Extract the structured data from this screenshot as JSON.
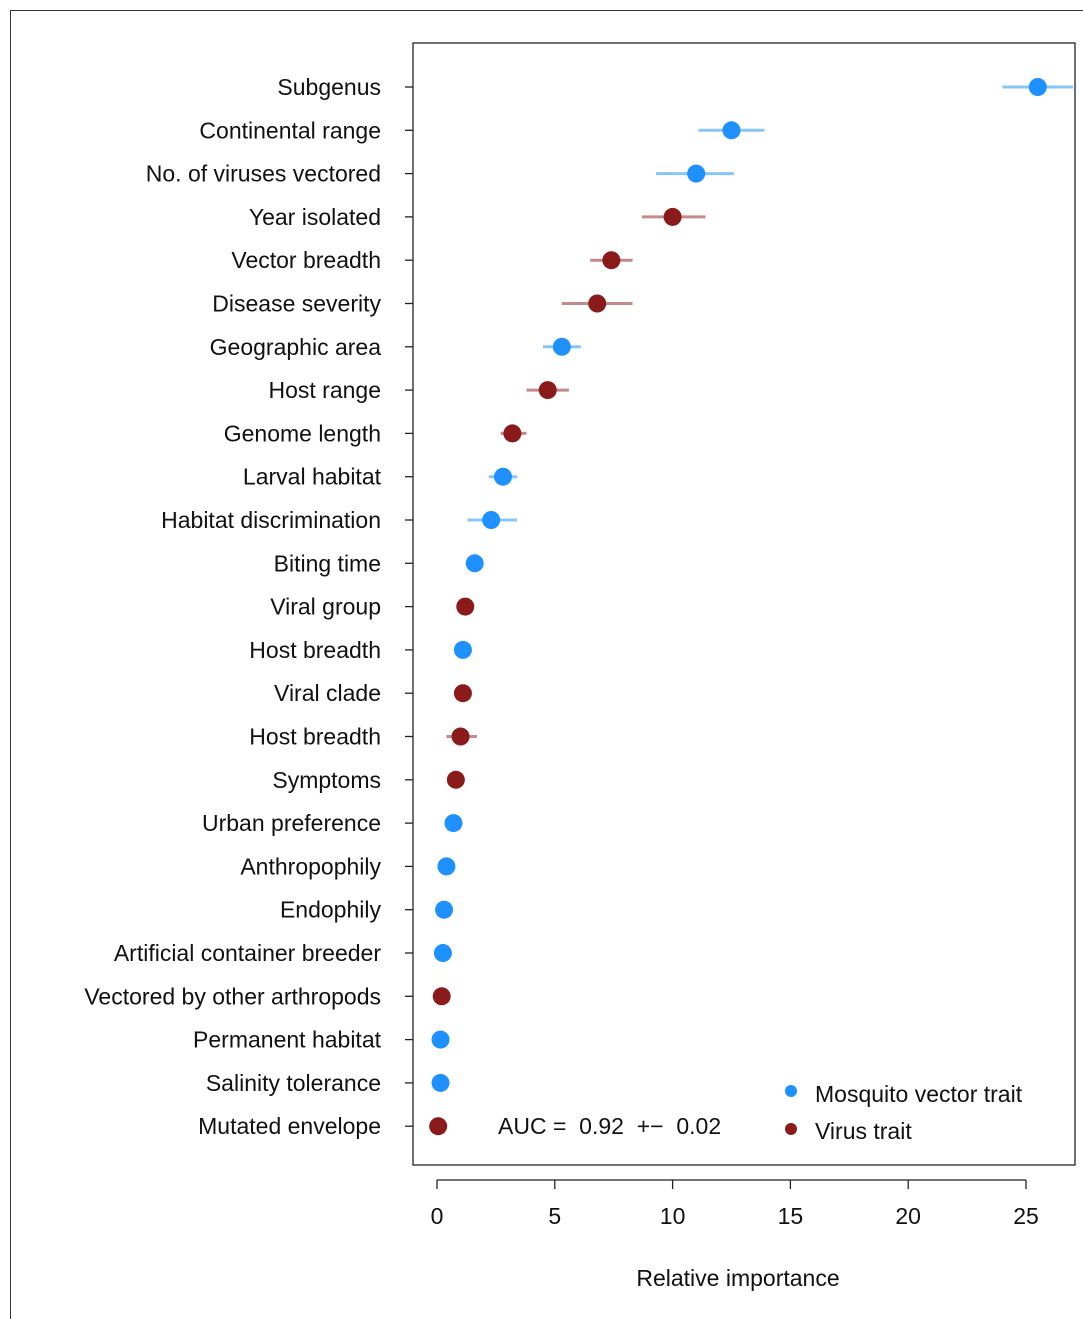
{
  "chart_data": {
    "type": "scatter",
    "title": "",
    "xlabel": "Relative importance",
    "ylabel": "",
    "xlim": [
      -1,
      26.5
    ],
    "x_ticks": [
      "0",
      "5",
      "10",
      "15",
      "20",
      "25"
    ],
    "x_tick_values": [
      0,
      5,
      10,
      15,
      20,
      25
    ],
    "grid": false,
    "legend_placement": "bottom-right",
    "series": [
      {
        "name": "Mosquito vector trait",
        "color": "#1e90ff",
        "error_color": "#87c5f5"
      },
      {
        "name": "Virus trait",
        "color": "#8b1a1a",
        "error_color": "#c48a8a"
      }
    ],
    "points": [
      {
        "label": "Subgenus",
        "value": 25.5,
        "lo": 24.0,
        "hi": 27.0,
        "series": 0
      },
      {
        "label": "Continental range",
        "value": 12.5,
        "lo": 11.1,
        "hi": 13.9,
        "series": 0
      },
      {
        "label": "No. of viruses vectored",
        "value": 11.0,
        "lo": 9.3,
        "hi": 12.6,
        "series": 0
      },
      {
        "label": "Year isolated",
        "value": 10.0,
        "lo": 8.7,
        "hi": 11.4,
        "series": 1
      },
      {
        "label": "Vector breadth",
        "value": 7.4,
        "lo": 6.5,
        "hi": 8.3,
        "series": 1
      },
      {
        "label": "Disease severity",
        "value": 6.8,
        "lo": 5.3,
        "hi": 8.3,
        "series": 1
      },
      {
        "label": "Geographic area",
        "value": 5.3,
        "lo": 4.5,
        "hi": 6.1,
        "series": 0
      },
      {
        "label": "Host range",
        "value": 4.7,
        "lo": 3.8,
        "hi": 5.6,
        "series": 1
      },
      {
        "label": "Genome length",
        "value": 3.2,
        "lo": 2.7,
        "hi": 3.8,
        "series": 1
      },
      {
        "label": "Larval habitat",
        "value": 2.8,
        "lo": 2.2,
        "hi": 3.4,
        "series": 0
      },
      {
        "label": "Habitat discrimination",
        "value": 2.3,
        "lo": 1.3,
        "hi": 3.4,
        "series": 0
      },
      {
        "label": "Biting time",
        "value": 1.6,
        "lo": 1.4,
        "hi": 1.8,
        "series": 0
      },
      {
        "label": "Viral group",
        "value": 1.2,
        "lo": 1.0,
        "hi": 1.4,
        "series": 1
      },
      {
        "label": "Host breadth",
        "value": 1.1,
        "lo": 0.9,
        "hi": 1.3,
        "series": 0
      },
      {
        "label": "Viral clade",
        "value": 1.1,
        "lo": 0.9,
        "hi": 1.3,
        "series": 1
      },
      {
        "label": "Host breadth",
        "value": 1.0,
        "lo": 0.4,
        "hi": 1.7,
        "series": 1
      },
      {
        "label": "Symptoms",
        "value": 0.8,
        "lo": 0.6,
        "hi": 1.0,
        "series": 1
      },
      {
        "label": "Urban preference",
        "value": 0.7,
        "lo": 0.5,
        "hi": 0.9,
        "series": 0
      },
      {
        "label": "Anthropophily",
        "value": 0.4,
        "lo": 0.3,
        "hi": 0.5,
        "series": 0
      },
      {
        "label": "Endophily",
        "value": 0.3,
        "lo": 0.2,
        "hi": 0.4,
        "series": 0
      },
      {
        "label": "Artificial container breeder",
        "value": 0.25,
        "lo": 0.15,
        "hi": 0.35,
        "series": 0
      },
      {
        "label": "Vectored by other arthropods",
        "value": 0.2,
        "lo": 0.1,
        "hi": 0.3,
        "series": 1
      },
      {
        "label": "Permanent habitat",
        "value": 0.15,
        "lo": 0.05,
        "hi": 0.25,
        "series": 0
      },
      {
        "label": "Salinity tolerance",
        "value": 0.15,
        "lo": 0.05,
        "hi": 0.25,
        "series": 0
      },
      {
        "label": "Mutated envelope",
        "value": 0.05,
        "lo": 0.0,
        "hi": 0.1,
        "series": 1
      }
    ],
    "annotation": "AUC =  0.92  +−  0.02"
  }
}
